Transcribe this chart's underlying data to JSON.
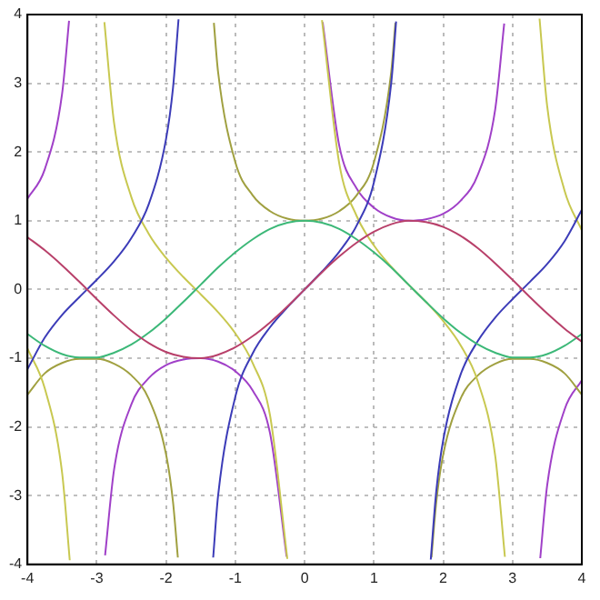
{
  "chart_data": {
    "type": "line",
    "xlim": [
      -4,
      4
    ],
    "ylim": [
      -4,
      4
    ],
    "xticks": [
      -4,
      -3,
      -2,
      -1,
      0,
      1,
      2,
      3,
      4
    ],
    "yticks": [
      -4,
      -3,
      -2,
      -1,
      0,
      1,
      2,
      3,
      4
    ],
    "grid": true,
    "marker": "none",
    "line_style": "solid",
    "series": [
      {
        "color": "#b8406a",
        "x": [
          -4,
          -3.75,
          -3.5,
          -3.25,
          -3,
          -2.75,
          -2.5,
          -2.25,
          -2,
          -1.75,
          -1.5,
          -1.25,
          -1,
          -0.75,
          -0.5,
          -0.25,
          0,
          0.25,
          0.5,
          0.75,
          1,
          1.25,
          1.5,
          1.75,
          2,
          2.25,
          2.5,
          2.75,
          3,
          3.25,
          3.5,
          3.75,
          4
        ],
        "values": [
          0.76,
          0.57,
          0.35,
          0.11,
          -0.14,
          -0.38,
          -0.6,
          -0.78,
          -0.91,
          -0.98,
          -1,
          -0.95,
          -0.84,
          -0.68,
          -0.48,
          -0.25,
          0,
          0.25,
          0.48,
          0.68,
          0.84,
          0.95,
          1,
          0.98,
          0.91,
          0.78,
          0.6,
          0.38,
          0.14,
          -0.11,
          -0.35,
          -0.57,
          -0.76
        ]
      },
      {
        "color": "#3cb878",
        "x": [
          -4,
          -3.75,
          -3.5,
          -3.25,
          -3,
          -2.75,
          -2.5,
          -2.25,
          -2,
          -1.75,
          -1.5,
          -1.25,
          -1,
          -0.75,
          -0.5,
          -0.25,
          0,
          0.25,
          0.5,
          0.75,
          1,
          1.25,
          1.5,
          1.75,
          2,
          2.25,
          2.5,
          2.75,
          3,
          3.25,
          3.5,
          3.75,
          4
        ],
        "values": [
          -0.65,
          -0.82,
          -0.94,
          -0.99,
          -0.99,
          -0.92,
          -0.8,
          -0.63,
          -0.42,
          -0.18,
          0.07,
          0.32,
          0.54,
          0.73,
          0.88,
          0.97,
          1,
          0.97,
          0.88,
          0.73,
          0.54,
          0.32,
          0.07,
          -0.18,
          -0.42,
          -0.63,
          -0.8,
          -0.92,
          -0.99,
          -0.99,
          -0.94,
          -0.82,
          -0.65
        ]
      },
      {
        "color": "#3c3cb8",
        "x": [
          -4,
          -3.75,
          -3.5,
          -3.25,
          -3,
          -2.75,
          -2.5,
          -2.25,
          -2,
          -1.9,
          -1.82,
          -1.57,
          -1.32,
          -1.25,
          -1,
          -0.75,
          -0.5,
          -0.25,
          0,
          0.25,
          0.5,
          0.75,
          1,
          1.25,
          1.32,
          1.57,
          1.82,
          1.9,
          2,
          2.25,
          2.5,
          2.75,
          3,
          3.25,
          3.5,
          3.75,
          4
        ],
        "values": [
          -1.16,
          -0.7,
          -0.37,
          -0.11,
          0.14,
          0.41,
          0.75,
          1.24,
          2.19,
          2.93,
          3.93,
          null,
          -3.9,
          -3.01,
          -1.56,
          -0.93,
          -0.55,
          -0.26,
          0,
          0.26,
          0.55,
          0.93,
          1.56,
          3.01,
          3.9,
          null,
          -3.93,
          -2.93,
          -2.19,
          -1.24,
          -0.75,
          -0.41,
          -0.14,
          0.11,
          0.37,
          0.7,
          1.16
        ]
      },
      {
        "color": "#c8c850",
        "x": [
          -4,
          -3.75,
          -3.5,
          -3.39,
          -3.14,
          -2.89,
          -2.75,
          -2.5,
          -2.25,
          -2,
          -1.75,
          -1.5,
          -1.25,
          -1,
          -0.75,
          -0.5,
          -0.25,
          0,
          0.25,
          0.5,
          0.75,
          1,
          1.25,
          1.5,
          1.75,
          2,
          2.25,
          2.5,
          2.75,
          2.89,
          3.14,
          3.39,
          3.5,
          3.75,
          4
        ],
        "values": [
          -0.86,
          -1.44,
          -2.67,
          -3.94,
          null,
          3.89,
          2.42,
          1.34,
          0.81,
          0.46,
          0.18,
          -0.07,
          -0.33,
          -0.64,
          -1.07,
          -1.83,
          -3.92,
          null,
          3.92,
          1.83,
          1.07,
          0.64,
          0.33,
          0.07,
          -0.18,
          -0.46,
          -0.81,
          -1.34,
          -2.42,
          -3.89,
          null,
          3.94,
          2.67,
          1.44,
          0.86
        ]
      },
      {
        "color": "#a0a040",
        "x": [
          -4,
          -3.75,
          -3.5,
          -3.25,
          -3,
          -2.75,
          -2.5,
          -2.25,
          -2,
          -1.9,
          -1.83,
          -1.57,
          -1.31,
          -1.25,
          -1,
          -0.75,
          -0.5,
          -0.25,
          0,
          0.25,
          0.5,
          0.75,
          1,
          1.25,
          1.31,
          1.57,
          1.83,
          1.9,
          2,
          2.25,
          2.5,
          2.75,
          3,
          3.25,
          3.5,
          3.75,
          4
        ],
        "values": [
          -1.53,
          -1.22,
          -1.07,
          -1.01,
          -1.01,
          -1.08,
          -1.25,
          -1.59,
          -2.4,
          -3.09,
          -3.9,
          null,
          3.88,
          3.17,
          1.85,
          1.37,
          1.14,
          1.03,
          1,
          1.03,
          1.14,
          1.37,
          1.85,
          3.17,
          3.88,
          null,
          -3.9,
          -3.09,
          -2.4,
          -1.59,
          -1.25,
          -1.08,
          -1.01,
          -1.01,
          -1.07,
          -1.22,
          -1.53
        ]
      },
      {
        "color": "#a040c8",
        "x": [
          -4,
          -3.75,
          -3.5,
          -3.4,
          -3.14,
          -2.88,
          -2.75,
          -2.5,
          -2.25,
          -2,
          -1.75,
          -1.5,
          -1.25,
          -1,
          -0.75,
          -0.5,
          -0.26,
          0,
          0.26,
          0.5,
          0.75,
          1,
          1.25,
          1.5,
          1.75,
          2,
          2.25,
          2.5,
          2.75,
          2.88,
          3.14,
          3.4,
          3.5,
          3.75,
          4
        ],
        "values": [
          1.32,
          1.75,
          2.85,
          3.91,
          null,
          -3.87,
          -2.62,
          -1.67,
          -1.29,
          -1.1,
          -1.02,
          -1,
          -1.05,
          -1.19,
          -1.47,
          -2.09,
          -3.89,
          null,
          3.89,
          2.09,
          1.47,
          1.19,
          1.05,
          1,
          1.02,
          1.1,
          1.29,
          1.67,
          2.62,
          3.87,
          null,
          -3.91,
          -2.85,
          -1.75,
          -1.32
        ]
      }
    ]
  }
}
